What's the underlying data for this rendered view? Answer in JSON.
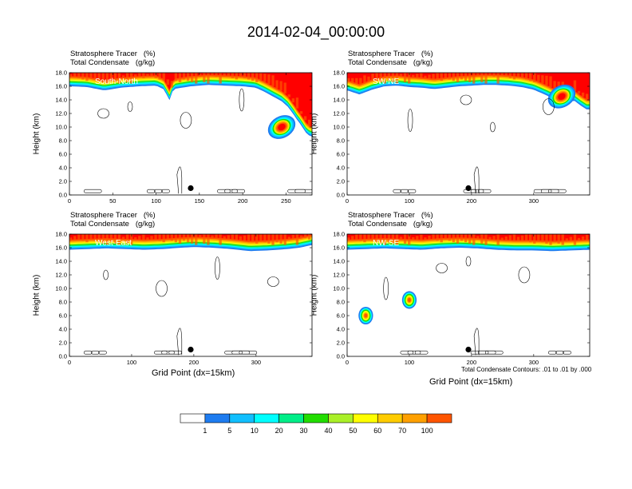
{
  "title": "2014-02-04_00:00:00",
  "panel_headers": {
    "line1": "Stratosphere Tracer   (%)",
    "line2": "Total Condensate   (g/kg)"
  },
  "ylabel": "Height (km)",
  "xlabel": "Grid Point (dx=15km)",
  "contour_note": "Total Condensate Contours: .01 to .01 by .000",
  "colors": {
    "bins": [
      "#ffffff",
      "#1e7cf0",
      "#11bfff",
      "#00ffff",
      "#00ee88",
      "#22dd00",
      "#aaf028",
      "#ffff00",
      "#ffcc00",
      "#ffa000",
      "#ff5500",
      "#ff0000"
    ]
  },
  "chart_data": [
    {
      "type": "heatmap",
      "panel_label": "South-North",
      "xlim": [
        0,
        280
      ],
      "ylim": [
        0,
        18
      ],
      "x_ticks": [
        0,
        50,
        100,
        150,
        200,
        250
      ],
      "y_ticks": [
        "0.0",
        "2.0",
        "4.0",
        "6.0",
        "8.0",
        "10.0",
        "12.0",
        "14.0",
        "16.0",
        "18.0"
      ],
      "tracer_boundary_height_km": [
        [
          0,
          16.0
        ],
        [
          20,
          15.9
        ],
        [
          40,
          15.4
        ],
        [
          60,
          15.8
        ],
        [
          80,
          16.0
        ],
        [
          100,
          16.1
        ],
        [
          110,
          15.5
        ],
        [
          115,
          13.8
        ],
        [
          120,
          15.6
        ],
        [
          140,
          16.0
        ],
        [
          160,
          16.2
        ],
        [
          180,
          16.1
        ],
        [
          200,
          16.0
        ],
        [
          215,
          15.8
        ],
        [
          225,
          15.2
        ],
        [
          235,
          14.5
        ],
        [
          245,
          13.8
        ],
        [
          252,
          13.0
        ],
        [
          258,
          12.0
        ],
        [
          262,
          11.2
        ],
        [
          268,
          10.2
        ],
        [
          272,
          9.3
        ],
        [
          276,
          8.8
        ],
        [
          280,
          8.6
        ]
      ],
      "intrusion_center": [
        245,
        10.0
      ],
      "marker": {
        "x": 140,
        "y": 1.0
      }
    },
    {
      "type": "heatmap",
      "panel_label": "SW-NE",
      "xlim": [
        0,
        390
      ],
      "ylim": [
        0,
        18
      ],
      "x_ticks": [
        0,
        100,
        200,
        300
      ],
      "y_ticks": [
        "0.0",
        "2.0",
        "4.0",
        "6.0",
        "8.0",
        "10.0",
        "12.0",
        "14.0",
        "16.0",
        "18.0"
      ],
      "tracer_boundary_height_km": [
        [
          0,
          15.4
        ],
        [
          20,
          14.8
        ],
        [
          40,
          15.5
        ],
        [
          60,
          16.0
        ],
        [
          80,
          16.1
        ],
        [
          100,
          15.9
        ],
        [
          120,
          15.8
        ],
        [
          140,
          15.6
        ],
        [
          160,
          15.8
        ],
        [
          180,
          16.0
        ],
        [
          200,
          16.1
        ],
        [
          220,
          16.2
        ],
        [
          240,
          16.2
        ],
        [
          260,
          16.1
        ],
        [
          280,
          15.9
        ],
        [
          300,
          15.5
        ],
        [
          320,
          14.7
        ],
        [
          340,
          13.8
        ],
        [
          350,
          13.5
        ],
        [
          365,
          13.9
        ],
        [
          375,
          13.2
        ],
        [
          385,
          12.6
        ],
        [
          390,
          12.6
        ]
      ],
      "intrusion_center": [
        345,
        14.5
      ],
      "marker": {
        "x": 195,
        "y": 1.0
      }
    },
    {
      "type": "heatmap",
      "panel_label": "West-East",
      "xlim": [
        0,
        390
      ],
      "ylim": [
        0,
        18
      ],
      "x_ticks": [
        0,
        100,
        200,
        300
      ],
      "y_ticks": [
        "0.0",
        "2.0",
        "4.0",
        "6.0",
        "8.0",
        "10.0",
        "12.0",
        "14.0",
        "16.0",
        "18.0"
      ],
      "tracer_boundary_height_km": [
        [
          0,
          15.7
        ],
        [
          30,
          15.8
        ],
        [
          60,
          15.9
        ],
        [
          90,
          15.8
        ],
        [
          120,
          15.7
        ],
        [
          150,
          15.8
        ],
        [
          180,
          16.0
        ],
        [
          200,
          16.1
        ],
        [
          230,
          16.0
        ],
        [
          260,
          15.8
        ],
        [
          290,
          15.5
        ],
        [
          320,
          15.6
        ],
        [
          350,
          15.8
        ],
        [
          370,
          16.0
        ],
        [
          390,
          16.4
        ]
      ],
      "marker": {
        "x": 195,
        "y": 1.0
      }
    },
    {
      "type": "heatmap",
      "panel_label": "NW-SE",
      "xlim": [
        0,
        390
      ],
      "ylim": [
        0,
        18
      ],
      "x_ticks": [
        0,
        100,
        200,
        300
      ],
      "y_ticks": [
        "0.0",
        "2.0",
        "4.0",
        "6.0",
        "8.0",
        "10.0",
        "12.0",
        "14.0",
        "16.0",
        "18.0"
      ],
      "tracer_boundary_height_km": [
        [
          0,
          15.7
        ],
        [
          30,
          15.8
        ],
        [
          60,
          15.9
        ],
        [
          90,
          15.8
        ],
        [
          120,
          15.7
        ],
        [
          150,
          15.9
        ],
        [
          180,
          16.0
        ],
        [
          210,
          15.9
        ],
        [
          240,
          15.7
        ],
        [
          270,
          15.6
        ],
        [
          300,
          15.6
        ],
        [
          330,
          15.5
        ],
        [
          360,
          15.6
        ],
        [
          390,
          15.7
        ]
      ],
      "blobs": [
        [
          30,
          6.0
        ],
        [
          100,
          8.3
        ]
      ],
      "marker": {
        "x": 195,
        "y": 1.0
      }
    },
    {
      "type": "colorbar",
      "labels": [
        "1",
        "5",
        "10",
        "20",
        "30",
        "40",
        "50",
        "60",
        "70",
        "100"
      ]
    }
  ]
}
